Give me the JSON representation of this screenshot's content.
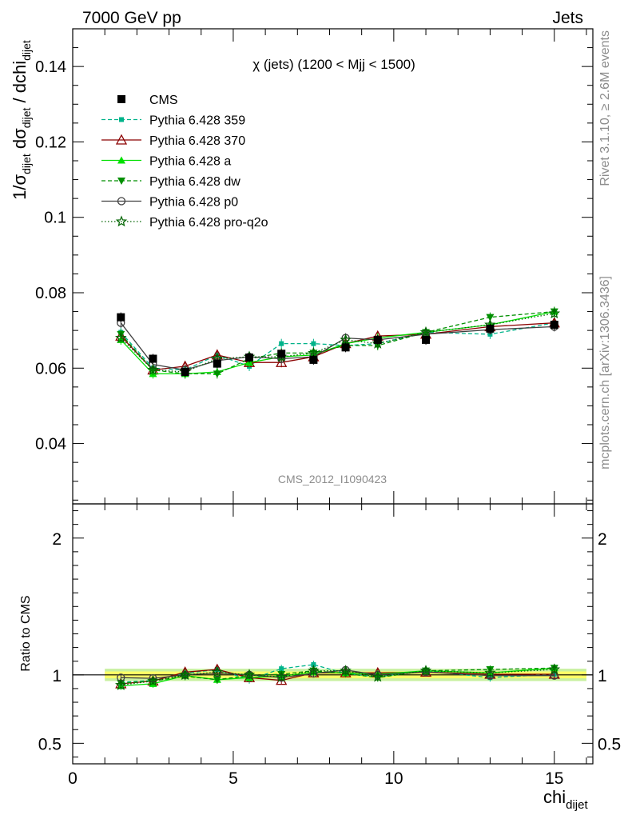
{
  "header": {
    "left": "7000 GeV pp",
    "right": "Jets"
  },
  "side": {
    "rivet": "Rivet 3.1.10, ≥ 2.6M events",
    "mcplots": "mcplots.cern.ch [arXiv:1306.3436]"
  },
  "analysis_id": "CMS_2012_I1090423",
  "colors": {
    "cms": "#000000",
    "p359": "#00b38a",
    "p370": "#8b0000",
    "pa": "#00e000",
    "pdw": "#008f00",
    "pp0": "#404040",
    "pq2o": "#006400",
    "band_inner": "#ffff66",
    "band_outer": "#c8f0a0"
  },
  "chart_data": [
    {
      "type": "line",
      "title": "χ (jets) (1200 < Mjj < 1500)",
      "ylabel_parts": {
        "a": "1/σ",
        "a_sub": "dijet",
        "b": " dσ",
        "b_sub": "dijet",
        "c": " / dchi",
        "c_sub": "dijet"
      },
      "xlim": [
        0,
        16.2
      ],
      "ylim": [
        0.024,
        0.15
      ],
      "yticks": [
        0.04,
        0.06,
        0.08,
        0.1,
        0.12,
        0.14
      ],
      "ytick_labels": [
        "0.04",
        "0.06",
        "0.08",
        "0.1",
        "0.12",
        "0.14"
      ],
      "grid": false,
      "legend_position": "top-left",
      "x": [
        1.5,
        2.5,
        3.5,
        4.5,
        5.5,
        6.5,
        7.5,
        8.5,
        9.5,
        11,
        13,
        15
      ],
      "series": [
        {
          "name": "CMS",
          "key": "cms",
          "marker": "square",
          "dash": "none",
          "values": [
            0.0735,
            0.0625,
            0.059,
            0.0612,
            0.0628,
            0.0638,
            0.0622,
            0.0655,
            0.0675,
            0.0675,
            0.0705,
            0.0715
          ]
        },
        {
          "name": "Pythia 6.428 359",
          "key": "p359",
          "marker": "smallsquare",
          "dash": "dashed",
          "values": [
            0.0695,
            0.06,
            0.0595,
            0.0635,
            0.0605,
            0.0665,
            0.0665,
            0.066,
            0.0665,
            0.0695,
            0.069,
            0.072
          ]
        },
        {
          "name": "Pythia 6.428 370",
          "key": "p370",
          "marker": "opentriangle",
          "dash": "none",
          "values": [
            0.0685,
            0.0595,
            0.0605,
            0.0635,
            0.0615,
            0.0615,
            0.063,
            0.0665,
            0.0685,
            0.069,
            0.071,
            0.072
          ]
        },
        {
          "name": "Pythia 6.428 a",
          "key": "pa",
          "marker": "triangle",
          "dash": "none",
          "values": [
            0.0675,
            0.0585,
            0.0585,
            0.059,
            0.0615,
            0.063,
            0.0635,
            0.0665,
            0.068,
            0.0695,
            0.0715,
            0.075
          ]
        },
        {
          "name": "Pythia 6.428 dw",
          "key": "pdw",
          "marker": "downtriangle",
          "dash": "dashed",
          "values": [
            0.069,
            0.0595,
            0.0585,
            0.0585,
            0.0625,
            0.064,
            0.064,
            0.066,
            0.066,
            0.0695,
            0.0735,
            0.075
          ]
        },
        {
          "name": "Pythia 6.428 p0",
          "key": "pp0",
          "marker": "opencircle",
          "dash": "none",
          "values": [
            0.072,
            0.061,
            0.0595,
            0.062,
            0.063,
            0.0625,
            0.063,
            0.068,
            0.0675,
            0.069,
            0.0702,
            0.071
          ]
        },
        {
          "name": "Pythia 6.428 pro-q2o",
          "key": "pq2o",
          "marker": "star",
          "dash": "dotted",
          "values": [
            0.068,
            0.0595,
            0.059,
            0.0625,
            0.063,
            0.063,
            0.064,
            0.0675,
            0.0665,
            0.0695,
            0.0715,
            0.0745
          ]
        }
      ]
    },
    {
      "type": "line",
      "ylabel": "Ratio to CMS",
      "xlabel": "chi",
      "xlabel_sub": "dijet",
      "xlim": [
        0,
        16.2
      ],
      "ylim": [
        0.35,
        2.25
      ],
      "yticks": [
        0.5,
        1,
        2
      ],
      "ytick_labels": [
        "0.5",
        "1",
        "2"
      ],
      "xticks": [
        0,
        5,
        10,
        15
      ],
      "xtick_labels": [
        "0",
        "5",
        "10",
        "15"
      ],
      "band_x": [
        1,
        16
      ],
      "band_inner": [
        0.975,
        1.025
      ],
      "band_outer": [
        0.955,
        1.045
      ],
      "series": [
        {
          "key": "p359",
          "values": [
            0.945,
            0.96,
            1.01,
            1.04,
            0.965,
            1.045,
            1.075,
            1.01,
            0.985,
            1.03,
            0.98,
            1.005
          ]
        },
        {
          "key": "p370",
          "values": [
            0.935,
            0.955,
            1.02,
            1.04,
            0.98,
            0.96,
            1.015,
            1.015,
            1.015,
            1.02,
            1.005,
            1.005
          ]
        },
        {
          "key": "pa",
          "values": [
            0.92,
            0.935,
            0.995,
            0.965,
            0.98,
            0.99,
            1.02,
            1.015,
            1.005,
            1.03,
            1.015,
            1.05
          ]
        },
        {
          "key": "pdw",
          "values": [
            0.94,
            0.955,
            0.99,
            0.965,
            0.995,
            1.005,
            1.03,
            1.01,
            0.98,
            1.03,
            1.04,
            1.05
          ]
        },
        {
          "key": "pp0",
          "values": [
            0.98,
            0.975,
            1.0,
            1.015,
            1.0,
            0.98,
            1.01,
            1.035,
            1.0,
            1.02,
            0.995,
            0.995
          ]
        },
        {
          "key": "pq2o",
          "values": [
            0.925,
            0.955,
            1.0,
            1.02,
            1.0,
            0.985,
            1.03,
            1.03,
            0.985,
            1.03,
            1.015,
            1.04
          ]
        }
      ]
    }
  ]
}
